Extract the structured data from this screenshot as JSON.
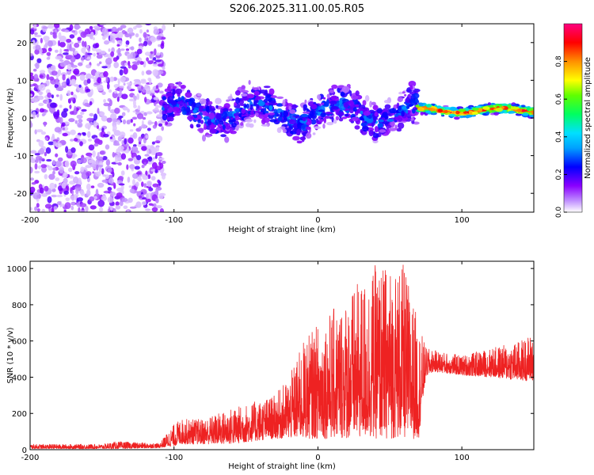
{
  "title": "S206.2025.311.00.05.R05",
  "chart_data": [
    {
      "type": "heatmap",
      "panel": "spectrogram",
      "xlabel": "Height of straight line (km)",
      "ylabel": "Frequency (Hz)",
      "xlim": [
        -200,
        150
      ],
      "ylim": [
        -25,
        25
      ],
      "xticks": [
        -200,
        -100,
        0,
        100
      ],
      "yticks": [
        20,
        10,
        0,
        -10,
        -20
      ],
      "colorbar": {
        "label": "Normalized spectral amplitude",
        "range": [
          0.0,
          1.0
        ],
        "ticks": [
          0.0,
          0.2,
          0.4,
          0.6,
          0.8
        ],
        "tick_labels": [
          "0.0",
          "0.2",
          "0.4",
          "0.6",
          "0.8"
        ],
        "colors": [
          "#ffffff",
          "#8a00ff",
          "#0000ff",
          "#00d8ff",
          "#00ff00",
          "#ffff00",
          "#ff8000",
          "#ff0000",
          "#ff0080"
        ]
      },
      "regions": [
        {
          "x_range": [
            -200,
            -107
          ],
          "description": "broadband noise",
          "freq_range": [
            -25,
            25
          ],
          "amplitude": 0.05
        },
        {
          "x_range": [
            -107,
            70
          ],
          "description": "signal band",
          "freq_center": 1.5,
          "freq_halfwidth": 6,
          "amplitude": 0.2
        },
        {
          "x_range": [
            70,
            150
          ],
          "description": "narrow strong line",
          "freq_center": 2,
          "freq_halfwidth": 1.5,
          "amplitude": 0.9
        }
      ]
    },
    {
      "type": "line",
      "panel": "snr",
      "xlabel": "Height of straight line (km)",
      "ylabel": "SNR (10 * v/v)",
      "xlim": [
        -200,
        150
      ],
      "ylim": [
        0,
        1040
      ],
      "xticks": [
        -200,
        -100,
        0,
        100
      ],
      "yticks": [
        0,
        200,
        400,
        600,
        800,
        1000
      ],
      "color": "#ee2222",
      "series": [
        {
          "name": "SNR",
          "x": [
            -200,
            -150,
            -140,
            -110,
            -105,
            -100,
            -95,
            -80,
            -60,
            -50,
            -30,
            -20,
            -10,
            0,
            20,
            40,
            60,
            70,
            75,
            80,
            100,
            120,
            140,
            150
          ],
          "envelope_low": [
            5,
            5,
            5,
            10,
            15,
            20,
            30,
            30,
            30,
            40,
            60,
            60,
            60,
            60,
            60,
            60,
            60,
            60,
            400,
            430,
            410,
            400,
            380,
            380
          ],
          "envelope_high": [
            30,
            30,
            45,
            35,
            90,
            140,
            170,
            170,
            230,
            250,
            300,
            400,
            600,
            700,
            850,
            1020,
            1020,
            700,
            560,
            550,
            520,
            560,
            600,
            650
          ]
        }
      ]
    }
  ]
}
